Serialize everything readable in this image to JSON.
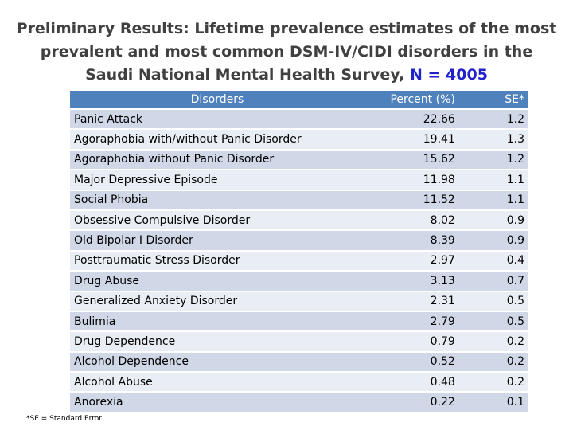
{
  "title": {
    "text": "Preliminary Results: Lifetime prevalence estimates of the most prevalent and most common DSM-IV/CIDI disorders in the Saudi National Mental Health Survey,",
    "highlight": "N = 4005",
    "highlight_color": "#2222cc"
  },
  "table": {
    "header": {
      "disorder": "Disorders",
      "percent": "Percent (%)",
      "se": "SE*"
    },
    "rows": [
      {
        "disorder": "Panic Attack",
        "percent": "22.66",
        "se": "1.2"
      },
      {
        "disorder": "Agoraphobia with/without Panic Disorder",
        "percent": "19.41",
        "se": "1.3"
      },
      {
        "disorder": "Agoraphobia without Panic Disorder",
        "percent": "15.62",
        "se": "1.2"
      },
      {
        "disorder": "Major Depressive Episode",
        "percent": "11.98",
        "se": "1.1"
      },
      {
        "disorder": "Social Phobia",
        "percent": "11.52",
        "se": "1.1"
      },
      {
        "disorder": "Obsessive Compulsive Disorder",
        "percent": "8.02",
        "se": "0.9"
      },
      {
        "disorder": "Old Bipolar I Disorder",
        "percent": "8.39",
        "se": "0.9"
      },
      {
        "disorder": "Posttraumatic Stress Disorder",
        "percent": "2.97",
        "se": "0.4"
      },
      {
        "disorder": "Drug Abuse",
        "percent": "3.13",
        "se": "0.7"
      },
      {
        "disorder": "Generalized Anxiety Disorder",
        "percent": "2.31",
        "se": "0.5"
      },
      {
        "disorder": "Bulimia",
        "percent": "2.79",
        "se": "0.5"
      },
      {
        "disorder": "Drug Dependence",
        "percent": "0.79",
        "se": "0.2"
      },
      {
        "disorder": "Alcohol Dependence",
        "percent": "0.52",
        "se": "0.2"
      },
      {
        "disorder": "Alcohol Abuse",
        "percent": "0.48",
        "se": "0.2"
      },
      {
        "disorder": "Anorexia",
        "percent": "0.22",
        "se": "0.1"
      }
    ]
  },
  "footnote": "*SE = Standard Error",
  "colors": {
    "header_bg": "#4f81bd",
    "row_even": "#d0d8e8",
    "row_odd": "#e9edf4",
    "title_text": "#404040"
  }
}
